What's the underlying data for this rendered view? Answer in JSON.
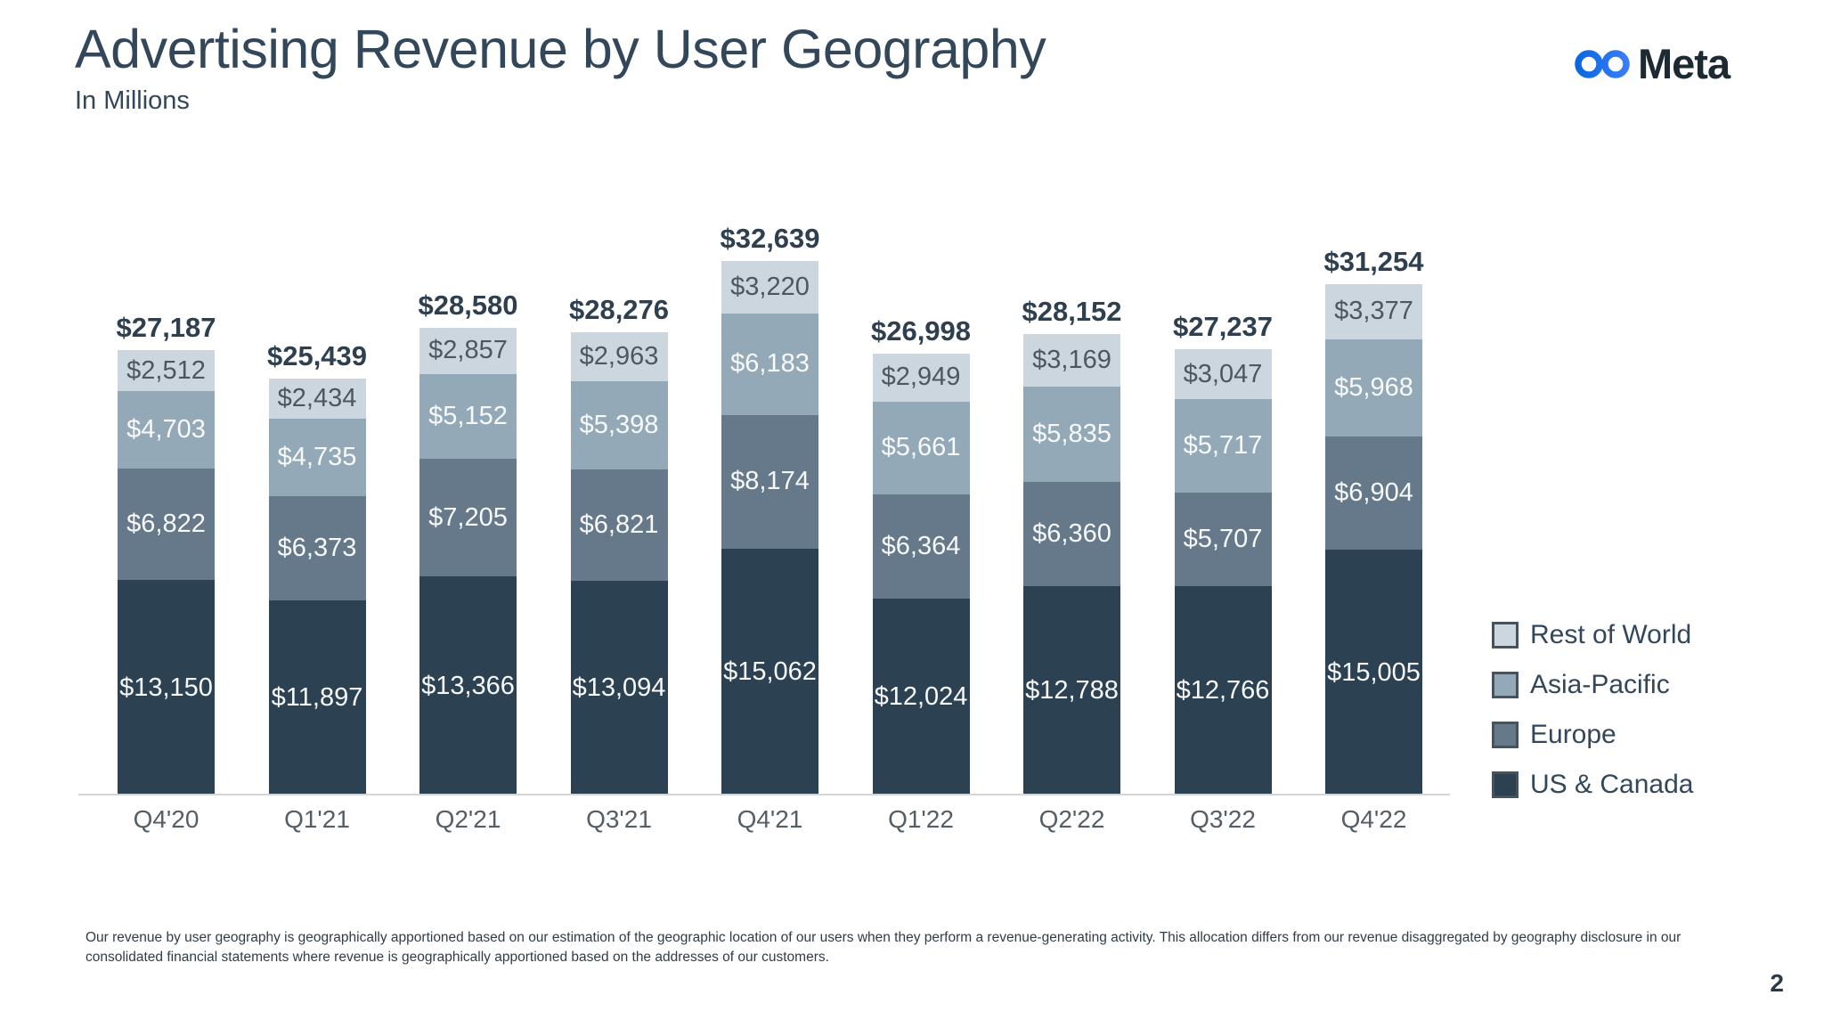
{
  "header": {
    "title": "Advertising Revenue by User Geography",
    "subtitle": "In Millions",
    "brand": "Meta"
  },
  "chart_data": {
    "type": "bar",
    "stacked": true,
    "title": "Advertising Revenue by User Geography",
    "unit": "USD millions",
    "grid": false,
    "legend_position": "right",
    "categories": [
      "Q4'20",
      "Q1'21",
      "Q2'21",
      "Q3'21",
      "Q4'21",
      "Q1'22",
      "Q2'22",
      "Q3'22",
      "Q4'22"
    ],
    "series": [
      {
        "name": "US & Canada",
        "color": "#2c4152",
        "label_color": "#f7f9fa",
        "values": [
          13150,
          11897,
          13366,
          13094,
          15062,
          12024,
          12788,
          12766,
          15005
        ]
      },
      {
        "name": "Europe",
        "color": "#66798b",
        "label_color": "#f7f9fa",
        "values": [
          6822,
          6373,
          7205,
          6821,
          8174,
          6364,
          6360,
          5707,
          6904
        ]
      },
      {
        "name": "Asia-Pacific",
        "color": "#93a9b7",
        "label_color": "#f7f9fa",
        "values": [
          4703,
          4735,
          5152,
          5398,
          6183,
          5661,
          5835,
          5717,
          5968
        ]
      },
      {
        "name": "Rest of World",
        "color": "#ccd6de",
        "label_color": "#4d575f",
        "values": [
          2512,
          2434,
          2857,
          2963,
          3220,
          2949,
          3169,
          3047,
          3377
        ]
      }
    ],
    "totals": [
      27187,
      25439,
      28580,
      28276,
      32639,
      26998,
      28152,
      27237,
      31254
    ]
  },
  "footer": {
    "footnote": "Our revenue by user geography is geographically apportioned based on our estimation of the geographic location of our users when they perform a revenue-generating activity. This allocation differs from our revenue disaggregated by geography disclosure in our consolidated financial statements where revenue is geographically apportioned based on the addresses of our customers.",
    "page_number": "2"
  }
}
